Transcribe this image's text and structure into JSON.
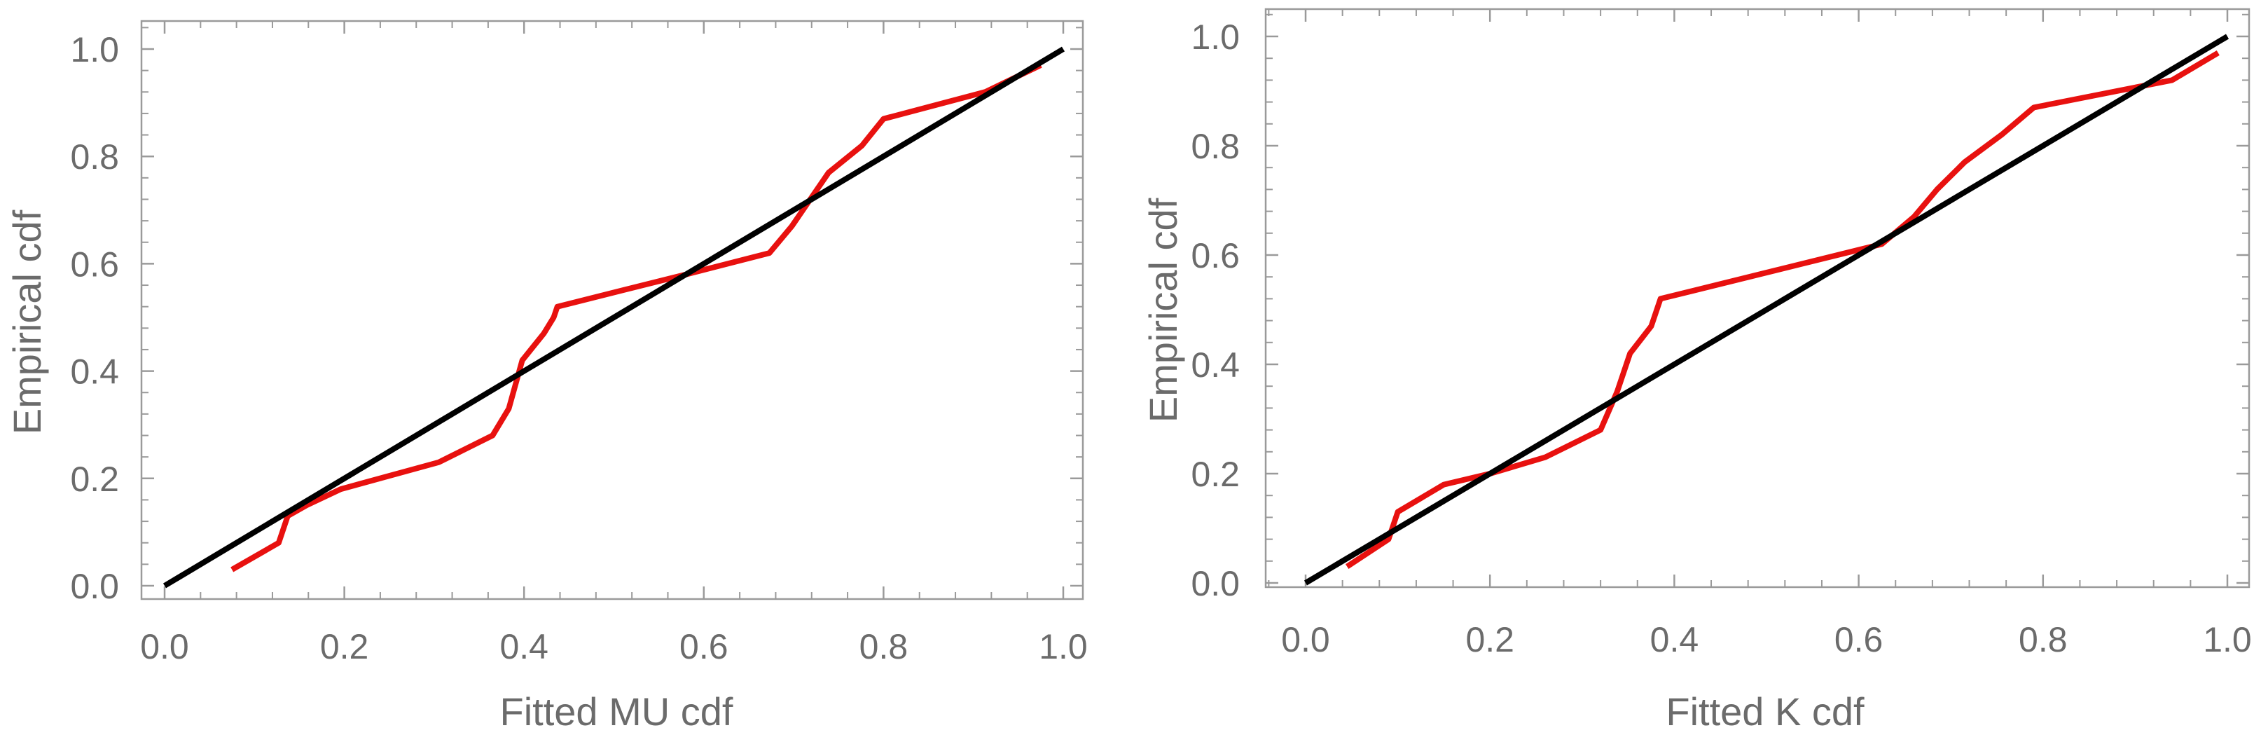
{
  "chart_data": [
    {
      "type": "line",
      "xlabel": "Fitted MU cdf",
      "ylabel": "Empirical cdf",
      "xlim": [
        0,
        1
      ],
      "ylim": [
        0,
        1
      ],
      "xticks": [
        "0.0",
        "0.2",
        "0.4",
        "0.6",
        "0.8",
        "1.0"
      ],
      "yticks": [
        "0.0",
        "0.2",
        "0.4",
        "0.6",
        "0.8",
        "1.0"
      ],
      "grid": false,
      "series": [
        {
          "color": "#e8110f",
          "x": [
            0.075,
            0.127,
            0.137,
            0.158,
            0.196,
            0.305,
            0.365,
            0.383,
            0.398,
            0.422,
            0.433,
            0.437,
            0.58,
            0.673,
            0.698,
            0.739,
            0.776,
            0.8,
            0.913,
            0.975
          ],
          "y": [
            0.03,
            0.08,
            0.13,
            0.15,
            0.18,
            0.23,
            0.28,
            0.33,
            0.42,
            0.47,
            0.5,
            0.52,
            0.58,
            0.62,
            0.67,
            0.77,
            0.82,
            0.87,
            0.92,
            0.97
          ]
        },
        {
          "color": "#000000",
          "x": [
            0,
            1
          ],
          "y": [
            0,
            1
          ]
        }
      ]
    },
    {
      "type": "line",
      "xlabel": "Fitted K cdf",
      "ylabel": "Empirical cdf",
      "xlim": [
        0,
        1
      ],
      "ylim": [
        0,
        1
      ],
      "xticks": [
        "0.0",
        "0.2",
        "0.4",
        "0.6",
        "0.8",
        "1.0"
      ],
      "yticks": [
        "0.0",
        "0.2",
        "0.4",
        "0.6",
        "0.8",
        "1.0"
      ],
      "grid": false,
      "series": [
        {
          "color": "#e8110f",
          "x": [
            0.045,
            0.09,
            0.1,
            0.15,
            0.2,
            0.26,
            0.32,
            0.338,
            0.352,
            0.375,
            0.385,
            0.625,
            0.66,
            0.685,
            0.715,
            0.755,
            0.79,
            0.91,
            0.94,
            0.99
          ],
          "y": [
            0.03,
            0.08,
            0.13,
            0.18,
            0.2,
            0.23,
            0.28,
            0.35,
            0.42,
            0.47,
            0.52,
            0.62,
            0.67,
            0.72,
            0.77,
            0.82,
            0.87,
            0.91,
            0.92,
            0.97
          ]
        },
        {
          "color": "#000000",
          "x": [
            0,
            1
          ],
          "y": [
            0,
            1
          ]
        }
      ]
    }
  ]
}
